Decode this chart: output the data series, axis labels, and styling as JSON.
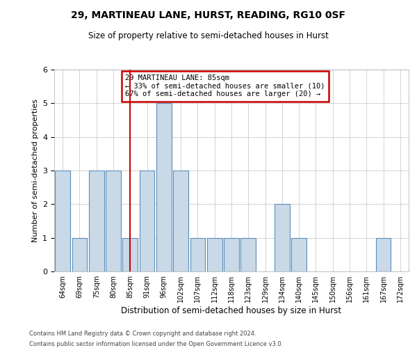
{
  "title1": "29, MARTINEAU LANE, HURST, READING, RG10 0SF",
  "title2": "Size of property relative to semi-detached houses in Hurst",
  "xlabel": "Distribution of semi-detached houses by size in Hurst",
  "ylabel": "Number of semi-detached properties",
  "categories": [
    "64sqm",
    "69sqm",
    "75sqm",
    "80sqm",
    "85sqm",
    "91sqm",
    "96sqm",
    "102sqm",
    "107sqm",
    "112sqm",
    "118sqm",
    "123sqm",
    "129sqm",
    "134sqm",
    "140sqm",
    "145sqm",
    "150sqm",
    "156sqm",
    "161sqm",
    "167sqm",
    "172sqm"
  ],
  "values": [
    3,
    1,
    3,
    3,
    1,
    3,
    5,
    3,
    1,
    1,
    1,
    1,
    0,
    2,
    1,
    0,
    0,
    0,
    0,
    1,
    0
  ],
  "highlight_index": 4,
  "bar_color": "#c9d9e8",
  "bar_edge_color": "#5b8db8",
  "highlight_line_color": "#cc0000",
  "annotation_text": "29 MARTINEAU LANE: 85sqm\n← 33% of semi-detached houses are smaller (10)\n67% of semi-detached houses are larger (20) →",
  "annotation_box_color": "white",
  "annotation_box_edge_color": "#cc0000",
  "ylim": [
    0,
    6
  ],
  "yticks": [
    0,
    1,
    2,
    3,
    4,
    5,
    6
  ],
  "footer1": "Contains HM Land Registry data © Crown copyright and database right 2024.",
  "footer2": "Contains public sector information licensed under the Open Government Licence v3.0.",
  "bg_color": "white",
  "grid_color": "#cccccc"
}
